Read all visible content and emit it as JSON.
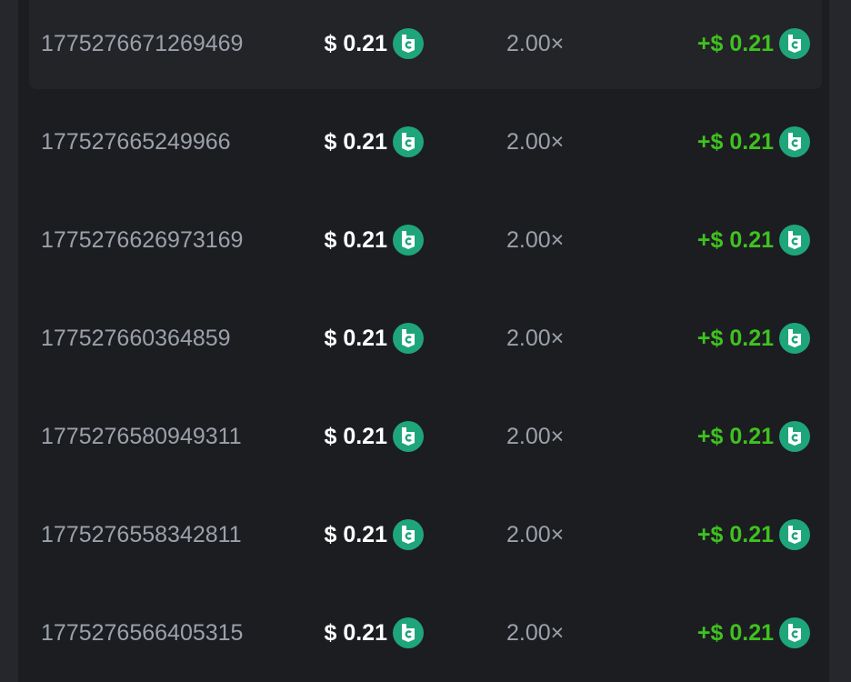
{
  "currency_icon": "bc-coin-icon",
  "colors": {
    "profit": "#3fc21f",
    "coin": "#1fa57a",
    "background": "#1c1d21"
  },
  "rows": [
    {
      "id": "1775276671269469",
      "amount": "$ 0.21",
      "multiplier": "2.00×",
      "profit": "+$ 0.21"
    },
    {
      "id": "177527665249966",
      "amount": "$ 0.21",
      "multiplier": "2.00×",
      "profit": "+$ 0.21"
    },
    {
      "id": "1775276626973169",
      "amount": "$ 0.21",
      "multiplier": "2.00×",
      "profit": "+$ 0.21"
    },
    {
      "id": "177527660364859",
      "amount": "$ 0.21",
      "multiplier": "2.00×",
      "profit": "+$ 0.21"
    },
    {
      "id": "1775276580949311",
      "amount": "$ 0.21",
      "multiplier": "2.00×",
      "profit": "+$ 0.21"
    },
    {
      "id": "1775276558342811",
      "amount": "$ 0.21",
      "multiplier": "2.00×",
      "profit": "+$ 0.21"
    },
    {
      "id": "1775276566405315",
      "amount": "$ 0.21",
      "multiplier": "2.00×",
      "profit": "+$ 0.21"
    }
  ]
}
